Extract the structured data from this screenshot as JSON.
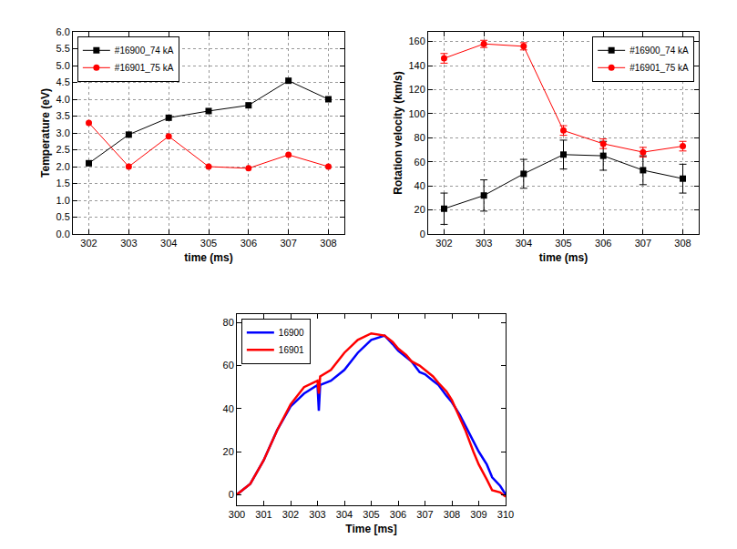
{
  "chart_data": [
    {
      "type": "line",
      "x_label": "time (ms)",
      "y_label": "Temperature (eV)",
      "xlim": [
        301.6,
        308.4
      ],
      "xticks": [
        302,
        303,
        304,
        305,
        306,
        307,
        308
      ],
      "ylim": [
        0,
        6
      ],
      "yticks": [
        {
          "value": 0,
          "label": "0.0"
        },
        {
          "value": 0.5,
          "label": "0.5"
        },
        {
          "value": 1,
          "label": "1.0"
        },
        {
          "value": 1.5,
          "label": "1.5"
        },
        {
          "value": 2,
          "label": "2.0"
        },
        {
          "value": 2.5,
          "label": "2.5"
        },
        {
          "value": 3,
          "label": "3.0"
        },
        {
          "value": 3.5,
          "label": "3.5"
        },
        {
          "value": 4,
          "label": "4.0"
        },
        {
          "value": 4.5,
          "label": "4.5"
        },
        {
          "value": 5,
          "label": "5.0"
        },
        {
          "value": 5.5,
          "label": "5.5"
        },
        {
          "value": 6,
          "label": "6.0"
        }
      ],
      "grid": true,
      "legend": "upper left",
      "x": [
        302,
        303,
        304,
        305,
        306,
        307,
        308
      ],
      "series": [
        {
          "name": "#16900_74 kA",
          "color": "#000000",
          "marker": "square",
          "values": [
            2.1,
            2.95,
            3.45,
            3.65,
            3.82,
            4.55,
            4.0
          ]
        },
        {
          "name": "#16901_75 kA",
          "color": "#ff0000",
          "marker": "circle",
          "values": [
            3.3,
            2.0,
            2.9,
            2.0,
            1.95,
            2.35,
            2.0
          ]
        }
      ]
    },
    {
      "type": "line",
      "x_label": "time (ms)",
      "y_label": "Rotation velocity (km/s)",
      "xlim": [
        301.6,
        308.4
      ],
      "xticks": [
        302,
        303,
        304,
        305,
        306,
        307,
        308
      ],
      "ylim": [
        0,
        168
      ],
      "yticks": [
        0,
        20,
        40,
        60,
        80,
        100,
        120,
        140,
        160
      ],
      "grid": true,
      "legend": "upper right",
      "x": [
        302,
        303,
        304,
        305,
        306,
        307,
        308
      ],
      "series": [
        {
          "name": "#16900_74 kA",
          "color": "#000000",
          "marker": "square",
          "values": [
            21,
            32,
            50,
            66,
            65,
            53,
            46
          ],
          "errors": [
            13,
            13,
            12,
            12,
            12,
            12,
            12
          ]
        },
        {
          "name": "#16901_75 kA",
          "color": "#ff0000",
          "marker": "circle",
          "values": [
            146,
            158,
            156,
            86,
            75,
            68,
            73
          ],
          "errors": [
            4,
            3,
            3,
            4,
            4,
            4,
            4
          ]
        }
      ]
    },
    {
      "type": "line",
      "x_label": "Time [ms]",
      "xlim": [
        300,
        310
      ],
      "xticks": [
        300,
        301,
        302,
        303,
        304,
        305,
        306,
        307,
        308,
        309,
        310
      ],
      "ylim": [
        -5,
        84
      ],
      "yticks": [
        0,
        20,
        40,
        60,
        80
      ],
      "grid": false,
      "legend": "upper left",
      "series": [
        {
          "name": "16900",
          "color": "#0000ff",
          "x": [
            300,
            300.5,
            301,
            301.5,
            302,
            302.5,
            303,
            303.05,
            303.1,
            303.5,
            304,
            304.5,
            305,
            305.5,
            305.8,
            306,
            306.3,
            306.5,
            306.8,
            307,
            307.3,
            307.5,
            307.8,
            308,
            308.3,
            308.5,
            308.8,
            309,
            309.3,
            309.5,
            309.8,
            310
          ],
          "values": [
            0,
            5,
            16,
            30,
            41,
            47,
            51,
            39,
            51,
            53,
            58,
            66,
            72,
            74,
            70,
            67,
            64,
            62,
            57,
            56,
            53,
            51,
            46,
            43,
            37,
            32,
            25,
            20,
            14,
            8,
            4,
            0
          ]
        },
        {
          "name": "16901",
          "color": "#ff0000",
          "x": [
            300,
            300.5,
            301,
            301.5,
            302,
            302.5,
            303,
            303.05,
            303.1,
            303.5,
            304,
            304.5,
            305,
            305.5,
            305.8,
            306,
            306.3,
            306.5,
            306.8,
            307,
            307.3,
            307.5,
            307.8,
            308,
            308.3,
            308.5,
            308.8,
            309,
            309.3,
            309.5,
            309.8,
            310
          ],
          "values": [
            0,
            5,
            16,
            30,
            42,
            50,
            53,
            47,
            55,
            58,
            66,
            72,
            75,
            74,
            71,
            68,
            65,
            62,
            60,
            58,
            55,
            52,
            48,
            44,
            36,
            30,
            20,
            14,
            7,
            2,
            1,
            -1
          ]
        }
      ]
    }
  ]
}
